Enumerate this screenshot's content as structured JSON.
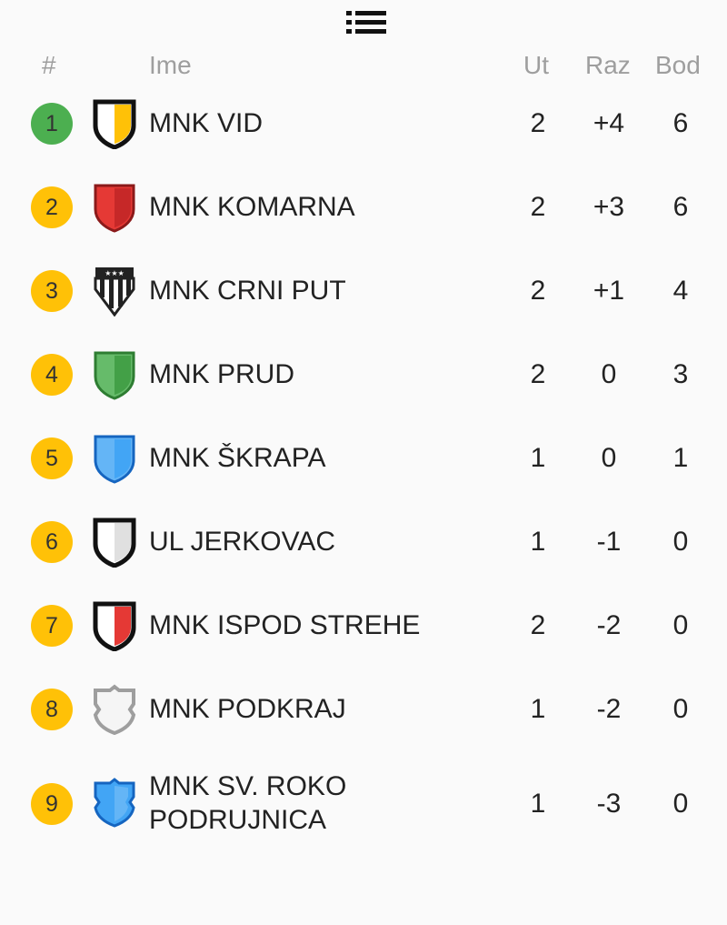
{
  "header": {
    "rank": "#",
    "name": "Ime",
    "played": "Ut",
    "diff": "Raz",
    "points": "Bod"
  },
  "colors": {
    "badge_top": "#4caf50",
    "badge_other": "#ffc107"
  },
  "teams": [
    {
      "rank": "1",
      "name": "MNK VID",
      "played": "2",
      "diff": "+4",
      "points": "6",
      "shield": "shield-black-yellow-icon"
    },
    {
      "rank": "2",
      "name": "MNK KOMARNA",
      "played": "2",
      "diff": "+3",
      "points": "6",
      "shield": "shield-red-icon"
    },
    {
      "rank": "3",
      "name": "MNK CRNI PUT",
      "played": "2",
      "diff": "+1",
      "points": "4",
      "shield": "shield-black-white-stripes-icon"
    },
    {
      "rank": "4",
      "name": "MNK PRUD",
      "played": "2",
      "diff": "0",
      "points": "3",
      "shield": "shield-green-icon"
    },
    {
      "rank": "5",
      "name": "MNK ŠKRAPA",
      "played": "1",
      "diff": "0",
      "points": "1",
      "shield": "shield-light-blue-icon"
    },
    {
      "rank": "6",
      "name": "UL JERKOVAC",
      "played": "1",
      "diff": "-1",
      "points": "0",
      "shield": "shield-white-icon"
    },
    {
      "rank": "7",
      "name": "MNK ISPOD STREHE",
      "played": "2",
      "diff": "-2",
      "points": "0",
      "shield": "shield-white-red-icon"
    },
    {
      "rank": "8",
      "name": "MNK PODKRAJ",
      "played": "1",
      "diff": "-2",
      "points": "0",
      "shield": "shield-gray-outline-icon"
    },
    {
      "rank": "9",
      "name": "MNK SV. ROKO",
      "name2": "PODRUJNICA",
      "played": "1",
      "diff": "-3",
      "points": "0",
      "shield": "shield-blue-ornate-icon"
    }
  ]
}
